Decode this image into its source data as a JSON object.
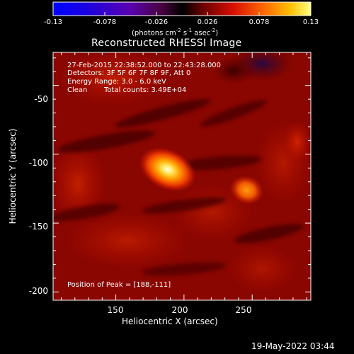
{
  "colorbar": {
    "ticks": [
      "-0.13",
      "-0.078",
      "-0.026",
      "0.026",
      "0.078",
      "0.13"
    ],
    "unit_main": "(photons cm",
    "unit_sup1": "-2",
    "unit_mid": " s",
    "unit_sup2": "-1",
    "unit_end": " asec",
    "unit_sup3": "-2",
    "unit_close": ")"
  },
  "chart_data": {
    "type": "heatmap",
    "title": "Reconstructed RHESSI Image",
    "xlabel": "Heliocentric X (arcsec)",
    "ylabel": "Heliocentric Y (arcsec)",
    "xlim": [
      104,
      293
    ],
    "ylim": [
      -206,
      -26
    ],
    "xticks": [
      "150",
      "200",
      "250"
    ],
    "yticks": [
      "-50",
      "-100",
      "-150",
      "-200"
    ],
    "color_range": [
      -0.13,
      0.13
    ],
    "colormap": "heat",
    "sources": [
      {
        "x": 188,
        "y": -111,
        "value": 0.13
      },
      {
        "x": 246,
        "y": -126,
        "value": 0.075
      }
    ],
    "peak": [
      188,
      -111
    ],
    "annotations": {
      "time_range": "27-Feb-2015 22:38:52.000 to 22:43:28.000",
      "detectors": "Detectors: 3F 5F 6F 7F 8F 9F, Att 0",
      "energy": "Energy Range: 3.0 - 6.0 keV",
      "algorithm": "Clean",
      "counts": "Total counts: 3.49E+04",
      "peak_text": "Position of Peak = [188,-111]"
    }
  },
  "footer": {
    "date": "19-May-2022 03:44"
  }
}
